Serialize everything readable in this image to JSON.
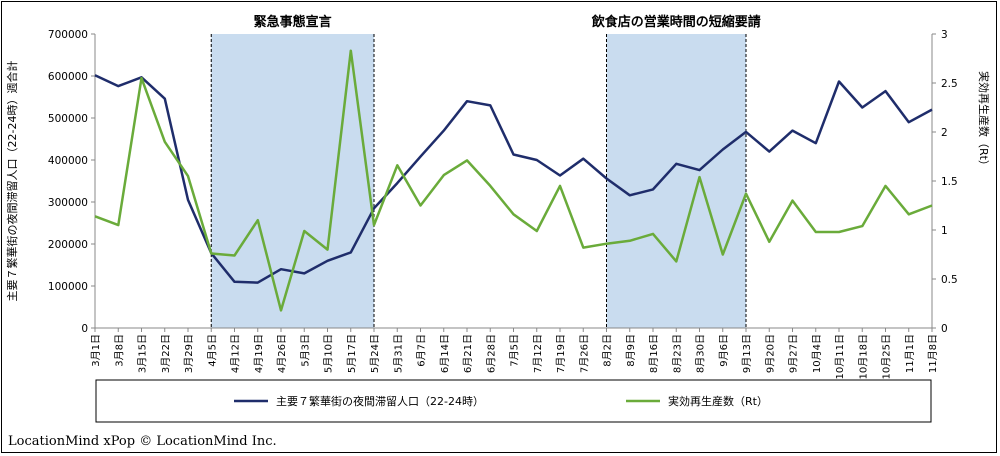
{
  "credit": "LocationMind xPop © LocationMind Inc.",
  "chart_data": {
    "type": "line",
    "categories": [
      "3月1日",
      "3月8日",
      "3月15日",
      "3月22日",
      "3月29日",
      "4月5日",
      "4月12日",
      "4月19日",
      "4月26日",
      "5月3日",
      "5月10日",
      "5月17日",
      "5月24日",
      "5月31日",
      "6月7日",
      "6月14日",
      "6月21日",
      "6月28日",
      "7月5日",
      "7月12日",
      "7月19日",
      "7月26日",
      "8月2日",
      "8月9日",
      "8月16日",
      "8月23日",
      "8月30日",
      "9月6日",
      "9月13日",
      "9月20日",
      "9月27日",
      "10月4日",
      "10月11日",
      "10月18日",
      "10月25日",
      "11月1日",
      "11月8日"
    ],
    "ylabel_left": "主要７繁華街の夜間滞留人口（22-24時）週合計",
    "ylabel_right": "実効再生産数（Rt）",
    "y_left_ticks": [
      "0",
      "100000",
      "200000",
      "300000",
      "400000",
      "500000",
      "600000",
      "700000"
    ],
    "y_right_ticks": [
      "0",
      "0.5",
      "1",
      "1.5",
      "2",
      "2.5",
      "3"
    ],
    "ylim_left": [
      0,
      700000
    ],
    "ylim_right": [
      0,
      3
    ],
    "shaded_regions": [
      {
        "label": "緊急事態宣言",
        "from": "4月5日",
        "to": "5月24日"
      },
      {
        "label": "飲食店の営業時間の短縮要請",
        "from": "8月2日",
        "to": "9月13日"
      }
    ],
    "series": [
      {
        "name": "主要７繁華街の夜間滞留人口（22-24時）",
        "axis": "left",
        "color": "#1f2d6b",
        "values": [
          602000,
          576000,
          597000,
          546000,
          305000,
          178000,
          110000,
          108000,
          140000,
          130000,
          160000,
          180000,
          285000,
          345000,
          408000,
          470000,
          540000,
          530000,
          413000,
          400000,
          363000,
          403000,
          356000,
          316000,
          330000,
          391000,
          376000,
          425000,
          467000,
          420000,
          470000,
          440000,
          587000,
          525000,
          564000,
          490000,
          520000
        ]
      },
      {
        "name": "実効再生産数（Rt）",
        "axis": "right",
        "color": "#6aab3a",
        "values": [
          1.14,
          1.05,
          2.55,
          1.9,
          1.55,
          0.76,
          0.74,
          1.1,
          0.18,
          0.99,
          0.8,
          2.83,
          1.05,
          1.66,
          1.25,
          1.56,
          1.71,
          1.45,
          1.16,
          0.99,
          1.45,
          0.82,
          0.86,
          0.89,
          0.96,
          0.68,
          1.54,
          0.75,
          1.37,
          0.88,
          1.3,
          0.98,
          0.98,
          1.04,
          1.45,
          1.16,
          1.25
        ]
      }
    ],
    "legend_position": "bottom"
  }
}
